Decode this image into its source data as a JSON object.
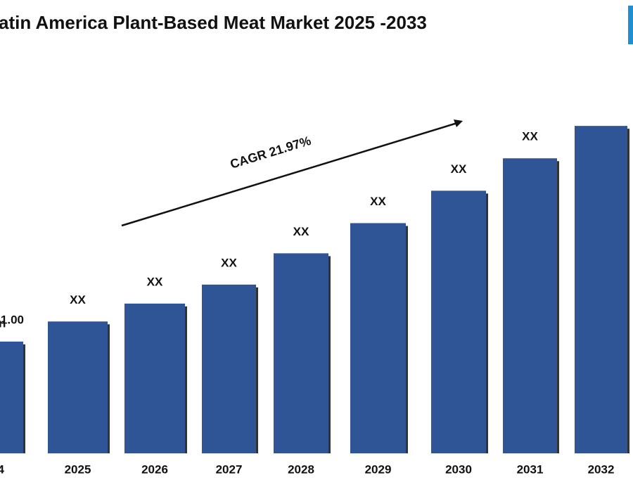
{
  "chart_data": {
    "type": "bar",
    "title": "atin America Plant-Based Meat Market  2025 -2033",
    "categories": [
      "4",
      "2025",
      "2026",
      "2027",
      "2028",
      "2029",
      "2030",
      "2031",
      "2032"
    ],
    "values": [
      1.0,
      1.18,
      1.34,
      1.51,
      1.79,
      2.06,
      2.35,
      2.64,
      2.93
    ],
    "value_labels": [
      "1.00",
      "XX",
      "XX",
      "XX",
      "XX",
      "XX",
      "XX",
      "XX",
      null
    ],
    "color": "#2f5597",
    "annotations": [
      "n",
      "CAGR 21.97%"
    ]
  }
}
